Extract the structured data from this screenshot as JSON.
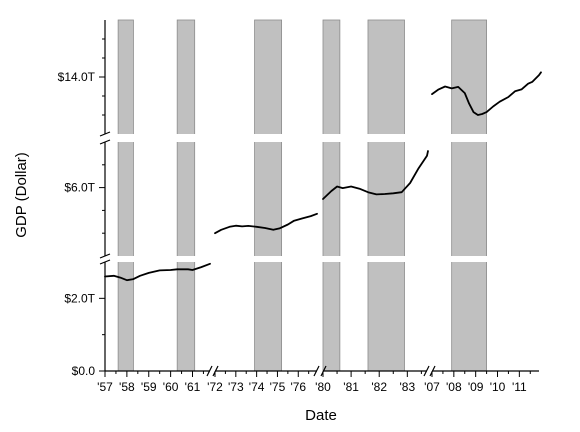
{
  "chart_data": {
    "type": "line",
    "title": "",
    "xlabel": "Date",
    "ylabel": "GDP (Dollar)",
    "colors": {
      "line": "#000000",
      "recession_shade": "#c0c0c0",
      "recession_edge": "#8c8c8c",
      "background": "#ffffff"
    },
    "x_axis": {
      "broken": true,
      "tick_labels": [
        "'57",
        "'58",
        "'59",
        "'60",
        "'61",
        "'72",
        "'73",
        "'74",
        "'75",
        "'76",
        "'80",
        "'81",
        "'82",
        "'83",
        "'07",
        "'08",
        "'09",
        "'10",
        "'11"
      ],
      "panels": [
        {
          "x_range": [
            1957,
            1961.8
          ],
          "ticks": [
            1957,
            1958,
            1959,
            1960,
            1961
          ]
        },
        {
          "x_range": [
            1972,
            1976.9
          ],
          "ticks": [
            1972,
            1973,
            1974,
            1975,
            1976
          ]
        },
        {
          "x_range": [
            1980,
            1983.7
          ],
          "ticks": [
            1980,
            1981,
            1982,
            1983
          ]
        },
        {
          "x_range": [
            2007,
            2011.9
          ],
          "ticks": [
            2007,
            2008,
            2009,
            2010,
            2011
          ]
        }
      ]
    },
    "y_axis": {
      "broken": true,
      "tick_labels": [
        "$0.0",
        "$2.0T",
        "$6.0T",
        "$14.0T"
      ],
      "segments": [
        {
          "y_range": [
            0,
            3.0
          ],
          "ticks": [
            0,
            2.0
          ],
          "minor": [
            1.0
          ]
        },
        {
          "y_range": [
            3.0,
            8.0
          ],
          "ticks": [
            6.0
          ],
          "minor": [
            4.0,
            5.0,
            7.0
          ]
        },
        {
          "y_range": [
            11.0,
            17.0
          ],
          "ticks": [
            14.0
          ],
          "minor": [
            12.0,
            13.0,
            15.0,
            16.0
          ]
        }
      ]
    },
    "recessions": [
      [
        1957.6,
        1958.3
      ],
      [
        1960.3,
        1961.1
      ],
      [
        1973.9,
        1975.2
      ],
      [
        1980.0,
        1980.6
      ],
      [
        1981.6,
        1982.9
      ],
      [
        2007.9,
        2009.5
      ]
    ],
    "series": [
      {
        "values": [
          [
            [
              1957.0,
              2.6
            ],
            [
              1957.4,
              2.62
            ],
            [
              1957.7,
              2.57
            ],
            [
              1958.0,
              2.5
            ],
            [
              1958.3,
              2.53
            ],
            [
              1958.6,
              2.62
            ],
            [
              1959.0,
              2.7
            ],
            [
              1959.5,
              2.77
            ],
            [
              1960.0,
              2.78
            ],
            [
              1960.3,
              2.8
            ],
            [
              1960.8,
              2.8
            ],
            [
              1961.0,
              2.78
            ],
            [
              1961.4,
              2.86
            ],
            [
              1961.8,
              2.95
            ]
          ],
          [
            [
              1972.0,
              4.0
            ],
            [
              1972.3,
              4.15
            ],
            [
              1972.7,
              4.28
            ],
            [
              1973.0,
              4.33
            ],
            [
              1973.3,
              4.3
            ],
            [
              1973.6,
              4.32
            ],
            [
              1974.0,
              4.28
            ],
            [
              1974.4,
              4.23
            ],
            [
              1974.8,
              4.15
            ],
            [
              1975.1,
              4.21
            ],
            [
              1975.5,
              4.38
            ],
            [
              1975.8,
              4.55
            ],
            [
              1976.2,
              4.65
            ],
            [
              1976.6,
              4.75
            ],
            [
              1976.9,
              4.85
            ]
          ],
          [
            [
              1980.0,
              5.5
            ],
            [
              1980.3,
              5.85
            ],
            [
              1980.5,
              6.05
            ],
            [
              1980.7,
              5.98
            ],
            [
              1981.0,
              6.05
            ],
            [
              1981.3,
              5.95
            ],
            [
              1981.6,
              5.8
            ],
            [
              1981.9,
              5.7
            ],
            [
              1982.2,
              5.72
            ],
            [
              1982.5,
              5.75
            ],
            [
              1982.8,
              5.8
            ],
            [
              1983.1,
              6.2
            ],
            [
              1983.4,
              6.85
            ],
            [
              1983.7,
              7.4
            ],
            [
              1983.9,
              7.6
            ]
          ],
          [
            [
              2007.0,
              13.1
            ],
            [
              2007.3,
              13.35
            ],
            [
              2007.6,
              13.5
            ],
            [
              2007.9,
              13.4
            ],
            [
              2008.2,
              13.48
            ],
            [
              2008.5,
              13.15
            ],
            [
              2008.7,
              12.6
            ],
            [
              2008.9,
              12.15
            ],
            [
              2009.1,
              12.0
            ],
            [
              2009.3,
              12.05
            ],
            [
              2009.5,
              12.15
            ],
            [
              2009.8,
              12.45
            ],
            [
              2010.1,
              12.7
            ],
            [
              2010.5,
              12.95
            ],
            [
              2010.8,
              13.25
            ],
            [
              2011.1,
              13.35
            ],
            [
              2011.4,
              13.65
            ],
            [
              2011.6,
              13.75
            ],
            [
              2011.9,
              14.1
            ],
            [
              2012.1,
              14.25
            ]
          ]
        ]
      }
    ]
  }
}
